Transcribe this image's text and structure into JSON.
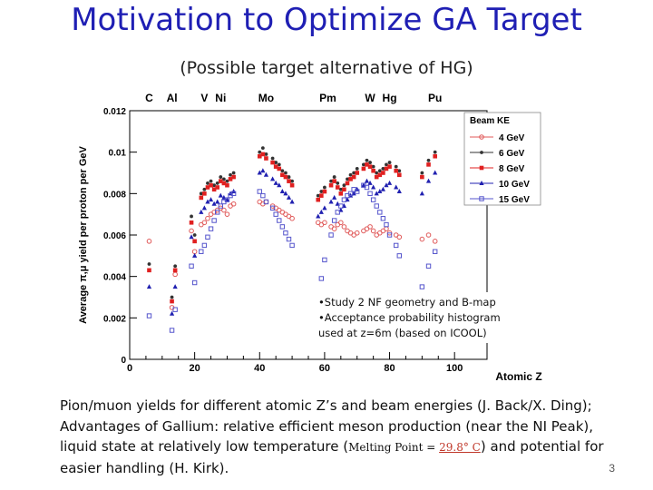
{
  "slide": {
    "title": "Motivation to Optimize GA Target",
    "subtitle": "(Possible target alternative of HG)",
    "page_number": "3"
  },
  "caption": {
    "line1": "Pion/muon yields for different atomic Z’s and beam energies (J. Back/X. Ding);",
    "line2": "Advantages of Gallium: relative efficient meson production (near the NI Peak),",
    "line3_prefix": "liquid state at relatively low temperature (",
    "mp_label": "Melting Point = ",
    "mp_value": "29.8° C",
    "line3_suffix": ") and potential for",
    "line4": "easier handling (H. Kirk)."
  },
  "chart_data": {
    "type": "scatter",
    "title": "",
    "xlabel": "Atomic Z",
    "ylabel": "Average π,μ yield per proton per GeV",
    "xlim": [
      0,
      110
    ],
    "ylim": [
      0,
      0.012
    ],
    "x_ticks": [
      0,
      20,
      40,
      60,
      80,
      100
    ],
    "y_ticks": [
      0,
      0.002,
      0.004,
      0.006,
      0.008,
      0.01,
      0.012
    ],
    "y_tick_labels": [
      "0",
      "0.002",
      "0.004",
      "0.006",
      "0.008",
      "0.01",
      "0.012"
    ],
    "element_labels": [
      {
        "label": "C",
        "z": 6
      },
      {
        "label": "Al",
        "z": 13
      },
      {
        "label": "V",
        "z": 23
      },
      {
        "label": "Ni",
        "z": 28
      },
      {
        "label": "Mo",
        "z": 42
      },
      {
        "label": "Pm",
        "z": 61
      },
      {
        "label": "W",
        "z": 74
      },
      {
        "label": "Hg",
        "z": 80
      },
      {
        "label": "Pu",
        "z": 94
      }
    ],
    "legend_title": "Beam KE",
    "legend_position": "top-right",
    "annotation": [
      "•Study 2 NF geometry and B-map",
      "•Acceptance probability histogram",
      "used at z=6m (based on ICOOL)"
    ],
    "series": [
      {
        "name": "4 GeV",
        "color": "#e05a5a",
        "marker": "open-circle",
        "x": [
          6,
          13,
          14,
          19,
          20,
          22,
          23,
          24,
          25,
          26,
          27,
          28,
          29,
          30,
          31,
          32,
          40,
          41,
          42,
          44,
          45,
          46,
          47,
          48,
          49,
          50,
          58,
          59,
          60,
          62,
          63,
          64,
          65,
          66,
          67,
          68,
          69,
          70,
          72,
          73,
          74,
          75,
          76,
          77,
          78,
          79,
          80,
          82,
          83,
          90,
          92,
          94
        ],
        "y": [
          0.0057,
          0.0025,
          0.0041,
          0.0062,
          0.0052,
          0.0065,
          0.0066,
          0.0068,
          0.007,
          0.0071,
          0.0072,
          0.0073,
          0.0072,
          0.007,
          0.0074,
          0.0075,
          0.0076,
          0.0075,
          0.0076,
          0.0074,
          0.0073,
          0.0072,
          0.0071,
          0.007,
          0.0069,
          0.0068,
          0.0066,
          0.0065,
          0.0066,
          0.0064,
          0.0063,
          0.0065,
          0.0066,
          0.0064,
          0.0062,
          0.0061,
          0.006,
          0.0061,
          0.0062,
          0.0063,
          0.0064,
          0.0062,
          0.006,
          0.0061,
          0.0062,
          0.0063,
          0.0061,
          0.006,
          0.0059,
          0.0058,
          0.006,
          0.0057
        ]
      },
      {
        "name": "6 GeV",
        "color": "#333333",
        "marker": "small-dot",
        "x": [
          6,
          13,
          14,
          19,
          20,
          22,
          23,
          24,
          25,
          26,
          27,
          28,
          29,
          30,
          31,
          32,
          40,
          41,
          42,
          44,
          45,
          46,
          47,
          48,
          49,
          50,
          58,
          59,
          60,
          62,
          63,
          64,
          65,
          66,
          67,
          68,
          69,
          70,
          72,
          73,
          74,
          75,
          76,
          77,
          78,
          79,
          80,
          82,
          83,
          90,
          92,
          94
        ],
        "y": [
          0.0046,
          0.003,
          0.0045,
          0.0069,
          0.006,
          0.008,
          0.0082,
          0.0085,
          0.0086,
          0.0084,
          0.0085,
          0.0088,
          0.0087,
          0.0086,
          0.0089,
          0.009,
          0.01,
          0.0102,
          0.0099,
          0.0097,
          0.0095,
          0.0094,
          0.0091,
          0.009,
          0.0088,
          0.0086,
          0.0079,
          0.0081,
          0.0083,
          0.0086,
          0.0088,
          0.0085,
          0.0082,
          0.0084,
          0.0087,
          0.0089,
          0.009,
          0.0092,
          0.0094,
          0.0096,
          0.0095,
          0.0093,
          0.009,
          0.0091,
          0.0092,
          0.0094,
          0.0095,
          0.0093,
          0.0091,
          0.009,
          0.0096,
          0.01
        ]
      },
      {
        "name": "8 GeV",
        "color": "#e02020",
        "marker": "filled-square",
        "x": [
          6,
          13,
          14,
          19,
          20,
          22,
          23,
          24,
          25,
          26,
          27,
          28,
          29,
          30,
          31,
          32,
          40,
          41,
          42,
          44,
          45,
          46,
          47,
          48,
          49,
          50,
          58,
          59,
          60,
          62,
          63,
          64,
          65,
          66,
          67,
          68,
          69,
          70,
          72,
          73,
          74,
          75,
          76,
          77,
          78,
          79,
          80,
          82,
          83,
          90,
          92,
          94
        ],
        "y": [
          0.0043,
          0.0028,
          0.0043,
          0.0066,
          0.0057,
          0.0078,
          0.008,
          0.0083,
          0.0084,
          0.0082,
          0.0083,
          0.0086,
          0.0085,
          0.0084,
          0.0087,
          0.0088,
          0.0098,
          0.0099,
          0.0097,
          0.0095,
          0.0093,
          0.0092,
          0.0089,
          0.0088,
          0.0086,
          0.0084,
          0.0077,
          0.0079,
          0.0081,
          0.0084,
          0.0086,
          0.0083,
          0.008,
          0.0082,
          0.0085,
          0.0087,
          0.0088,
          0.009,
          0.0092,
          0.0094,
          0.0093,
          0.0091,
          0.0088,
          0.0089,
          0.009,
          0.0092,
          0.0093,
          0.0091,
          0.0089,
          0.0088,
          0.0094,
          0.0098
        ]
      },
      {
        "name": "10 GeV",
        "color": "#2020b0",
        "marker": "filled-triangle",
        "x": [
          6,
          13,
          14,
          19,
          20,
          22,
          23,
          24,
          25,
          26,
          27,
          28,
          29,
          30,
          31,
          32,
          40,
          41,
          42,
          44,
          45,
          46,
          47,
          48,
          49,
          50,
          58,
          59,
          60,
          62,
          63,
          64,
          65,
          66,
          67,
          68,
          69,
          70,
          72,
          73,
          74,
          75,
          76,
          77,
          78,
          79,
          80,
          82,
          83,
          90,
          92,
          94
        ],
        "y": [
          0.0035,
          0.0022,
          0.0035,
          0.0059,
          0.005,
          0.0071,
          0.0073,
          0.0076,
          0.0077,
          0.0075,
          0.0076,
          0.0079,
          0.0078,
          0.0077,
          0.008,
          0.0081,
          0.009,
          0.0091,
          0.0089,
          0.0087,
          0.0085,
          0.0084,
          0.0081,
          0.008,
          0.0078,
          0.0076,
          0.0069,
          0.0071,
          0.0073,
          0.0076,
          0.0078,
          0.0075,
          0.0072,
          0.0074,
          0.0077,
          0.0079,
          0.008,
          0.0082,
          0.0084,
          0.0086,
          0.0085,
          0.0083,
          0.008,
          0.0081,
          0.0082,
          0.0084,
          0.0085,
          0.0083,
          0.0081,
          0.008,
          0.0086,
          0.009
        ]
      },
      {
        "name": "15 GeV",
        "color": "#5555cc",
        "marker": "open-square",
        "x": [
          6,
          13,
          14,
          19,
          20,
          22,
          23,
          24,
          25,
          26,
          27,
          28,
          29,
          30,
          31,
          32,
          40,
          41,
          42,
          44,
          45,
          46,
          47,
          48,
          49,
          50,
          58,
          59,
          60,
          62,
          63,
          64,
          65,
          66,
          67,
          68,
          69,
          70,
          72,
          73,
          74,
          75,
          76,
          77,
          78,
          79,
          80,
          82,
          83,
          90,
          92,
          94
        ],
        "y": [
          0.0021,
          0.0014,
          0.0024,
          0.0045,
          0.0037,
          0.0052,
          0.0055,
          0.0059,
          0.0063,
          0.0067,
          0.0071,
          0.0074,
          0.0076,
          0.0077,
          0.0079,
          0.008,
          0.0081,
          0.0079,
          0.0076,
          0.0073,
          0.007,
          0.0067,
          0.0064,
          0.0061,
          0.0058,
          0.0055,
          0.003,
          0.0039,
          0.0048,
          0.006,
          0.0067,
          0.0071,
          0.0074,
          0.0077,
          0.0079,
          0.008,
          0.0082,
          0.0081,
          0.0084,
          0.0083,
          0.008,
          0.0077,
          0.0074,
          0.0071,
          0.0068,
          0.0065,
          0.006,
          0.0055,
          0.005,
          0.0035,
          0.0045,
          0.0052
        ]
      }
    ]
  }
}
